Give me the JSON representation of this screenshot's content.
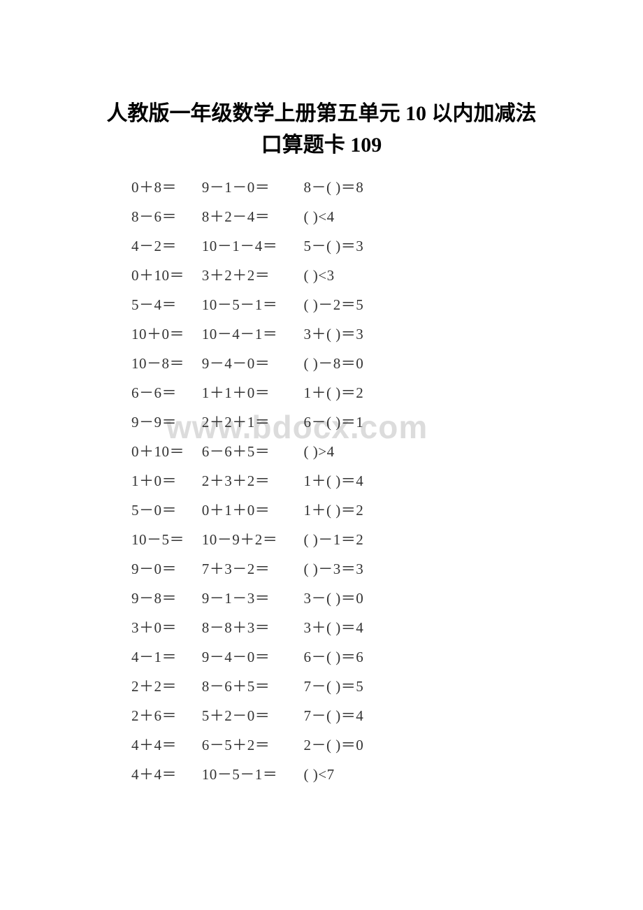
{
  "title_line1": "人教版一年级数学上册第五单元 10 以内加减法",
  "title_line2": "口算题卡 109",
  "watermark": "www.bdocx.com",
  "text_color": "#333333",
  "title_color": "#000000",
  "watermark_color": "#dcdcdc",
  "background_color": "#ffffff",
  "problem_fontsize": 21,
  "title_fontsize": 30,
  "rows": [
    {
      "c1": "0＋8＝",
      "c2": "9－1－0＝",
      "c3": "8－( )＝8"
    },
    {
      "c1": "8－6＝",
      "c2": "8＋2－4＝",
      "c3": "( )<4"
    },
    {
      "c1": "4－2＝",
      "c2": "10－1－4＝",
      "c3": "5－( )＝3"
    },
    {
      "c1": "0＋10＝",
      "c2": "3＋2＋2＝",
      "c3": "( )<3"
    },
    {
      "c1": "5－4＝",
      "c2": "10－5－1＝",
      "c3": "( )－2＝5"
    },
    {
      "c1": "10＋0＝",
      "c2": "10－4－1＝",
      "c3": "3＋( )＝3"
    },
    {
      "c1": "10－8＝",
      "c2": "9－4－0＝",
      "c3": "( )－8＝0"
    },
    {
      "c1": "6－6＝",
      "c2": "1＋1＋0＝",
      "c3": "1＋( )＝2"
    },
    {
      "c1": "9－9＝",
      "c2": "2＋2＋1＝",
      "c3": "6－( )＝1"
    },
    {
      "c1": "0＋10＝",
      "c2": "6－6＋5＝",
      "c3": "( )>4"
    },
    {
      "c1": "1＋0＝",
      "c2": "2＋3＋2＝",
      "c3": "1＋( )＝4"
    },
    {
      "c1": "5－0＝",
      "c2": "0＋1＋0＝",
      "c3": "1＋( )＝2"
    },
    {
      "c1": "10－5＝",
      "c2": "10－9＋2＝",
      "c3": "( )－1＝2"
    },
    {
      "c1": "9－0＝",
      "c2": "7＋3－2＝",
      "c3": "( )－3＝3"
    },
    {
      "c1": "9－8＝",
      "c2": "9－1－3＝",
      "c3": "3－( )＝0"
    },
    {
      "c1": "3＋0＝",
      "c2": "8－8＋3＝",
      "c3": "3＋( )＝4"
    },
    {
      "c1": "4－1＝",
      "c2": "9－4－0＝",
      "c3": "6－( )＝6"
    },
    {
      "c1": "2＋2＝",
      "c2": "8－6＋5＝",
      "c3": "7－( )＝5"
    },
    {
      "c1": "2＋6＝",
      "c2": "5＋2－0＝",
      "c3": "7－( )＝4"
    },
    {
      "c1": "4＋4＝",
      "c2": "6－5＋2＝",
      "c3": "2－( )＝0"
    },
    {
      "c1": "4＋4＝",
      "c2": "10－5－1＝",
      "c3": "( )<7"
    }
  ]
}
